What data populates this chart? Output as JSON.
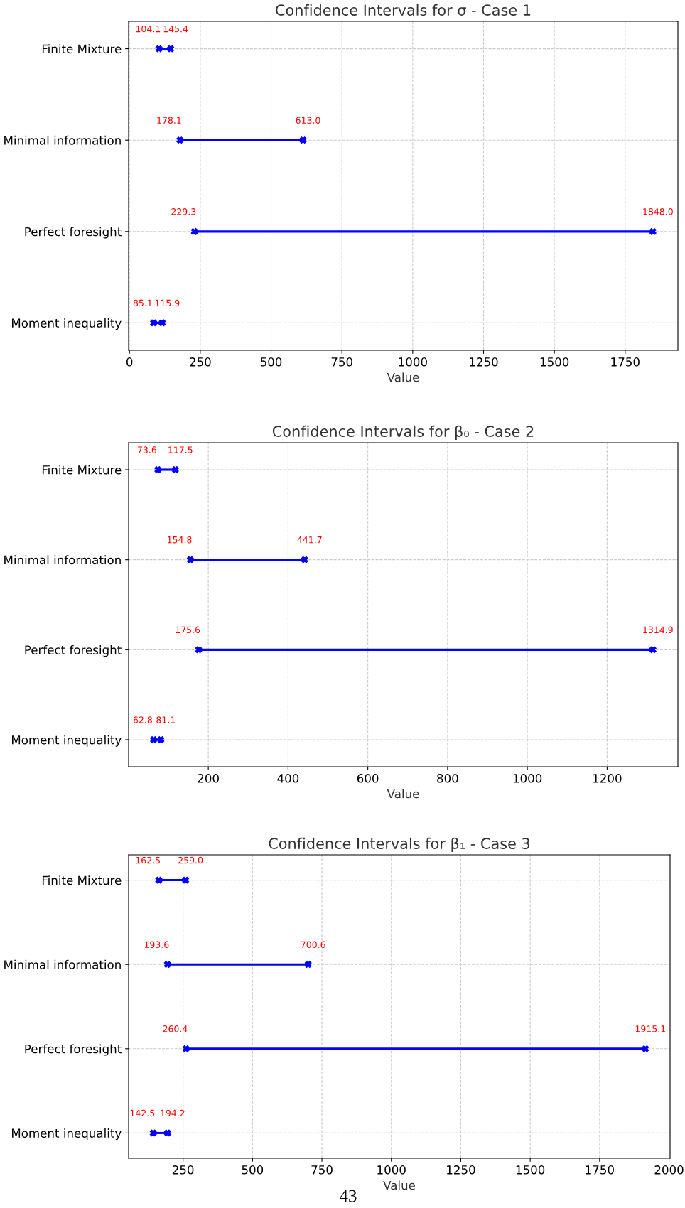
{
  "chart_data": [
    {
      "type": "bar",
      "orientation": "horizontal",
      "title": "Confidence Intervals for σ - Case 1",
      "xlabel": "Value",
      "categories": [
        "Finite Mixture",
        "Minimal information",
        "Perfect foresight",
        "Moment inequality"
      ],
      "base": [
        104.1,
        178.1,
        229.3,
        85.1
      ],
      "values": [
        41.3,
        434.9,
        1618.7,
        30.8
      ],
      "color": "#0000ff",
      "marker": "cross",
      "grid": true,
      "xlim": [
        -3.0,
        1936.1
      ],
      "xticks": [
        0,
        250,
        500,
        750,
        1000,
        1250,
        1500,
        1750
      ],
      "annotations": [
        {
          "text": "104.1",
          "x": 104.1,
          "y": "Finite Mixture"
        },
        {
          "text": "145.4",
          "x": 145.4,
          "y": "Finite Mixture"
        },
        {
          "text": "178.1",
          "x": 178.1,
          "y": "Minimal information"
        },
        {
          "text": "613.0",
          "x": 613.0,
          "y": "Minimal information"
        },
        {
          "text": "229.3",
          "x": 229.3,
          "y": "Perfect foresight"
        },
        {
          "text": "1848.0",
          "x": 1848.0,
          "y": "Perfect foresight"
        },
        {
          "text": "85.1",
          "x": 85.1,
          "y": "Moment inequality"
        },
        {
          "text": "115.9",
          "x": 115.9,
          "y": "Moment inequality"
        }
      ]
    },
    {
      "type": "bar",
      "orientation": "horizontal",
      "title": "Confidence Intervals for β₀ - Case 2",
      "xlabel": "Value",
      "categories": [
        "Finite Mixture",
        "Minimal information",
        "Perfect foresight",
        "Moment inequality"
      ],
      "base": [
        73.6,
        154.8,
        175.6,
        62.8
      ],
      "values": [
        43.9,
        286.9,
        1139.3,
        18.3
      ],
      "color": "#0000ff",
      "marker": "cross",
      "grid": true,
      "xlim": [
        0.2,
        1377.5
      ],
      "xticks": [
        200,
        400,
        600,
        800,
        1000,
        1200
      ],
      "annotations": [
        {
          "text": "73.6",
          "x": 73.6,
          "y": "Finite Mixture"
        },
        {
          "text": "117.5",
          "x": 117.5,
          "y": "Finite Mixture"
        },
        {
          "text": "154.8",
          "x": 154.8,
          "y": "Minimal information"
        },
        {
          "text": "441.7",
          "x": 441.7,
          "y": "Minimal information"
        },
        {
          "text": "175.6",
          "x": 175.6,
          "y": "Perfect foresight"
        },
        {
          "text": "1314.9",
          "x": 1314.9,
          "y": "Perfect foresight"
        },
        {
          "text": "62.8",
          "x": 62.8,
          "y": "Moment inequality"
        },
        {
          "text": "81.1",
          "x": 81.1,
          "y": "Moment inequality"
        }
      ]
    },
    {
      "type": "bar",
      "orientation": "horizontal",
      "title": "Confidence Intervals for β₁ - Case 3",
      "xlabel": "Value",
      "categories": [
        "Finite Mixture",
        "Minimal information",
        "Perfect foresight",
        "Moment inequality"
      ],
      "base": [
        162.5,
        193.6,
        260.4,
        142.5
      ],
      "values": [
        96.5,
        507.0,
        1654.7,
        51.7
      ],
      "color": "#0000ff",
      "marker": "cross",
      "grid": true,
      "xlim": [
        53.9,
        2003.7
      ],
      "xticks": [
        250,
        500,
        750,
        1000,
        1250,
        1500,
        1750,
        2000
      ],
      "annotations": [
        {
          "text": "162.5",
          "x": 162.5,
          "y": "Finite Mixture"
        },
        {
          "text": "259.0",
          "x": 259.0,
          "y": "Finite Mixture"
        },
        {
          "text": "193.6",
          "x": 193.6,
          "y": "Minimal information"
        },
        {
          "text": "700.6",
          "x": 700.6,
          "y": "Minimal information"
        },
        {
          "text": "260.4",
          "x": 260.4,
          "y": "Perfect foresight"
        },
        {
          "text": "1915.1",
          "x": 1915.1,
          "y": "Perfect foresight"
        },
        {
          "text": "142.5",
          "x": 142.5,
          "y": "Moment inequality"
        },
        {
          "text": "194.2",
          "x": 194.2,
          "y": "Moment inequality"
        },
        "43"
      ]
    }
  ]
}
